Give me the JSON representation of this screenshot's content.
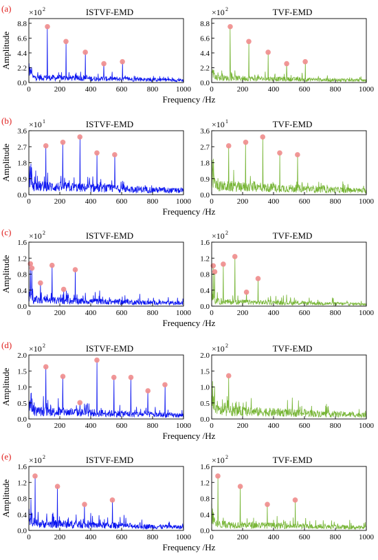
{
  "figure": {
    "xlabel": "Frequency /Hz",
    "ylabel": "Amplitude",
    "xticks": [
      "0",
      "200",
      "400",
      "600",
      "800",
      "1000"
    ],
    "colors": {
      "blue": "#0a14f0",
      "green": "#77b536",
      "peak": "#f08c8c",
      "label": "#e0201e"
    }
  },
  "chart_data": [
    {
      "type": "line",
      "panel_label": "(a)",
      "exponent_label": "×10",
      "exponent": "2",
      "yticks": [
        "0.0",
        "2.2",
        "4.4",
        "6.6",
        "8.8"
      ],
      "ylim": [
        0,
        9.5
      ],
      "xlim": [
        0,
        1000
      ],
      "charts": [
        {
          "title": "ISTVF-EMD",
          "color": "blue",
          "baseline": 1.1,
          "noise": 0.7,
          "peaks": [
            {
              "x": 120,
              "y": 8.3
            },
            {
              "x": 240,
              "y": 6.1
            },
            {
              "x": 365,
              "y": 4.5
            },
            {
              "x": 485,
              "y": 2.8
            },
            {
              "x": 605,
              "y": 3.1
            }
          ]
        },
        {
          "title": "TVF-EMD",
          "color": "green",
          "baseline": 1.0,
          "noise": 0.7,
          "peaks": [
            {
              "x": 120,
              "y": 8.3
            },
            {
              "x": 240,
              "y": 6.1
            },
            {
              "x": 365,
              "y": 4.5
            },
            {
              "x": 485,
              "y": 2.8
            },
            {
              "x": 605,
              "y": 3.1
            }
          ]
        }
      ]
    },
    {
      "type": "line",
      "panel_label": "(b)",
      "exponent_label": "×10",
      "exponent": "1",
      "yticks": [
        "0.0",
        "0.9",
        "1.8",
        "2.7",
        "3.6"
      ],
      "ylim": [
        0,
        3.6
      ],
      "xlim": [
        0,
        1000
      ],
      "charts": [
        {
          "title": "ISTVF-EMD",
          "color": "blue",
          "baseline": 0.7,
          "noise": 0.45,
          "peaks": [
            {
              "x": 110,
              "y": 2.75
            },
            {
              "x": 220,
              "y": 2.95
            },
            {
              "x": 330,
              "y": 3.25
            },
            {
              "x": 440,
              "y": 2.35
            },
            {
              "x": 555,
              "y": 2.25
            }
          ]
        },
        {
          "title": "TVF-EMD",
          "color": "green",
          "baseline": 0.7,
          "noise": 0.45,
          "peaks": [
            {
              "x": 110,
              "y": 2.75
            },
            {
              "x": 220,
              "y": 2.95
            },
            {
              "x": 330,
              "y": 3.25
            },
            {
              "x": 440,
              "y": 2.35
            },
            {
              "x": 555,
              "y": 2.25
            }
          ]
        }
      ]
    },
    {
      "type": "line",
      "panel_label": "(c)",
      "exponent_label": "×10",
      "exponent": "2",
      "yticks": [
        "0.0",
        "0.4",
        "0.8",
        "1.2",
        "1.6"
      ],
      "ylim": [
        0,
        1.6
      ],
      "xlim": [
        0,
        1000
      ],
      "charts": [
        {
          "title": "ISTVF-EMD",
          "color": "blue",
          "baseline": 0.22,
          "noise": 0.18,
          "peaks": [
            {
              "x": 10,
              "y": 1.06
            },
            {
              "x": 20,
              "y": 0.95
            },
            {
              "x": 75,
              "y": 0.58
            },
            {
              "x": 150,
              "y": 1.02
            },
            {
              "x": 225,
              "y": 0.42
            },
            {
              "x": 300,
              "y": 0.91
            }
          ]
        },
        {
          "title": "TVF-EMD",
          "color": "green",
          "baseline": 0.16,
          "noise": 0.14,
          "peaks": [
            {
              "x": 10,
              "y": 1.01
            },
            {
              "x": 20,
              "y": 0.86
            },
            {
              "x": 75,
              "y": 1.05
            },
            {
              "x": 150,
              "y": 1.24
            },
            {
              "x": 225,
              "y": 0.35
            },
            {
              "x": 300,
              "y": 0.69
            }
          ]
        }
      ]
    },
    {
      "type": "line",
      "panel_label": "(d)",
      "exponent_label": "×10",
      "exponent": "2",
      "yticks": [
        "0.0",
        "0.5",
        "1.0",
        "1.5",
        "2.0"
      ],
      "ylim": [
        0,
        2.0
      ],
      "xlim": [
        0,
        1000
      ],
      "charts": [
        {
          "title": "ISTVF-EMD",
          "color": "blue",
          "baseline": 0.35,
          "noise": 0.3,
          "peaks": [
            {
              "x": 110,
              "y": 1.63
            },
            {
              "x": 220,
              "y": 1.33
            },
            {
              "x": 330,
              "y": 0.51
            },
            {
              "x": 440,
              "y": 1.84
            },
            {
              "x": 550,
              "y": 1.3
            },
            {
              "x": 660,
              "y": 1.3
            },
            {
              "x": 770,
              "y": 0.88
            },
            {
              "x": 880,
              "y": 1.07
            }
          ]
        },
        {
          "title": "TVF-EMD",
          "color": "green",
          "baseline": 0.38,
          "noise": 0.32,
          "peaks": [
            {
              "x": 110,
              "y": 1.35
            }
          ]
        }
      ]
    },
    {
      "type": "line",
      "panel_label": "(e)",
      "exponent_label": "×10",
      "exponent": "2",
      "yticks": [
        "0.0",
        "0.4",
        "0.8",
        "1.2",
        "1.6"
      ],
      "ylim": [
        0,
        1.6
      ],
      "xlim": [
        0,
        1000
      ],
      "charts": [
        {
          "title": "ISTVF-EMD",
          "color": "blue",
          "baseline": 0.25,
          "noise": 0.2,
          "peaks": [
            {
              "x": 40,
              "y": 1.36
            },
            {
              "x": 185,
              "y": 1.1
            },
            {
              "x": 360,
              "y": 0.65
            },
            {
              "x": 540,
              "y": 0.76
            }
          ]
        },
        {
          "title": "TVF-EMD",
          "color": "green",
          "baseline": 0.22,
          "noise": 0.18,
          "peaks": [
            {
              "x": 40,
              "y": 1.36
            },
            {
              "x": 185,
              "y": 1.1
            },
            {
              "x": 360,
              "y": 0.65
            },
            {
              "x": 540,
              "y": 0.76
            }
          ]
        }
      ]
    }
  ]
}
